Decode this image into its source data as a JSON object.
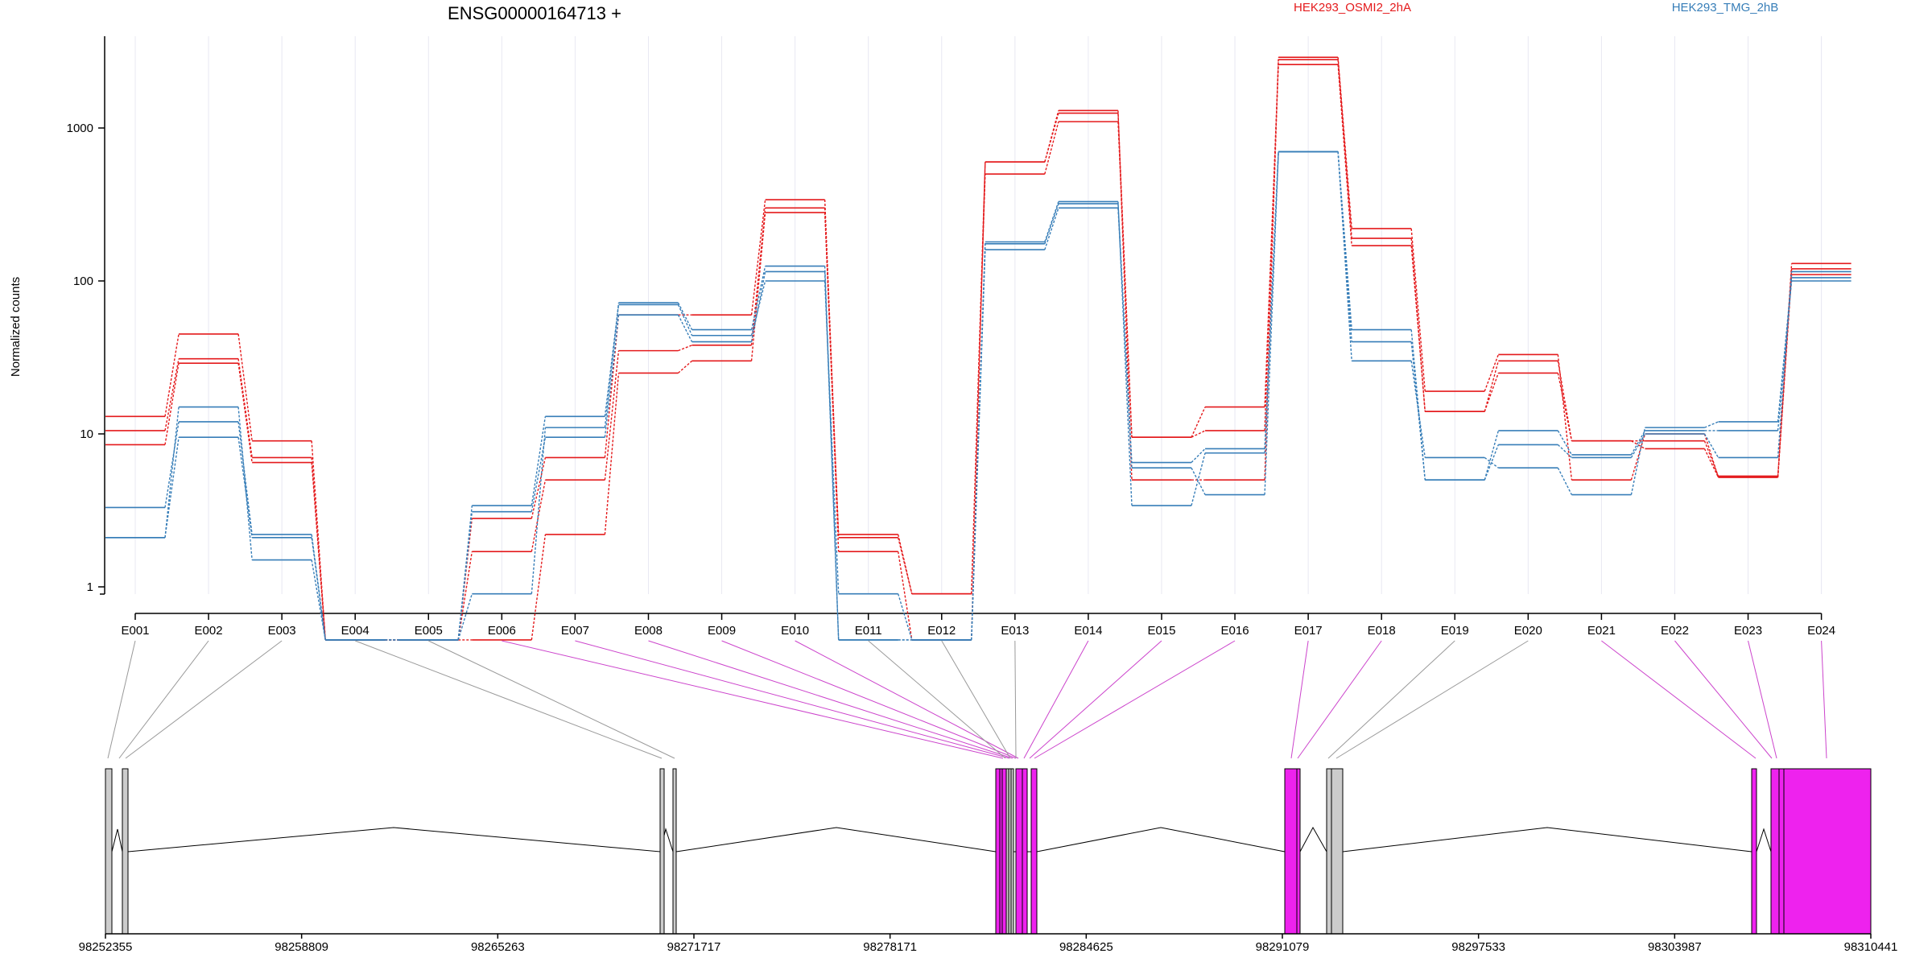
{
  "title": "ENSG00000164713 +",
  "ylabel": "Normalized counts",
  "colors": {
    "condition_a": "#e41a1c",
    "condition_b": "#377eb8",
    "significant": "#ee22ee",
    "not_significant": "#cccccc",
    "grid": "#e8e8f2",
    "axis": "#000000",
    "link_gray": "#999999",
    "link_magenta": "#cc44cc"
  },
  "legend": [
    {
      "name": "HEK293_OSMI2_2hA",
      "color": "#e41a1c"
    },
    {
      "name": "HEK293_TMG_2hB",
      "color": "#377eb8"
    }
  ],
  "chart_data": {
    "type": "line",
    "title": "ENSG00000164713 +",
    "ylabel": "Normalized counts",
    "yscale": "log",
    "ylim": [
      0.35,
      3800
    ],
    "y_ticks": [
      1,
      10,
      100,
      1000
    ],
    "y_tick_labels": [
      "1",
      "10",
      "100",
      "1000"
    ],
    "categories": [
      "E001",
      "E002",
      "E003",
      "E004",
      "E005",
      "E006",
      "E007",
      "E008",
      "E009",
      "E010",
      "E011",
      "E012",
      "E013",
      "E014",
      "E015",
      "E016",
      "E017",
      "E018",
      "E019",
      "E020",
      "E021",
      "E022",
      "E023",
      "E024"
    ],
    "series": [
      {
        "group": "HEK293_OSMI2_2hA",
        "values": [
          13,
          45,
          9,
          0.45,
          0.45,
          0.45,
          2.2,
          25,
          30,
          280,
          2.2,
          0.9,
          500,
          1100,
          9.5,
          15,
          2600,
          170,
          14,
          25,
          9,
          8,
          5.2,
          130
        ]
      },
      {
        "group": "HEK293_OSMI2_2hA",
        "values": [
          10.5,
          31,
          7,
          0.45,
          0.45,
          1.7,
          5,
          35,
          38,
          300,
          1.7,
          0.45,
          600,
          1250,
          9.5,
          10.5,
          2800,
          190,
          14,
          30,
          9,
          9,
          5.3,
          120
        ]
      },
      {
        "group": "HEK293_OSMI2_2hA",
        "values": [
          8.5,
          29,
          6.5,
          0.45,
          0.45,
          2.8,
          7,
          60,
          60,
          340,
          2.1,
          0.9,
          600,
          1300,
          5,
          5,
          2900,
          220,
          19,
          33,
          5,
          10,
          5.2,
          110
        ]
      },
      {
        "group": "HEK293_TMG_2hB",
        "values": [
          2.1,
          15,
          1.5,
          0.45,
          0.45,
          3.4,
          13,
          70,
          44,
          100,
          0.9,
          0.45,
          160,
          300,
          6.5,
          8,
          700,
          48,
          5,
          8.5,
          7,
          10,
          7,
          115
        ]
      },
      {
        "group": "HEK293_TMG_2hB",
        "values": [
          3.3,
          12,
          2.2,
          0.45,
          0.45,
          0.9,
          11,
          72,
          48,
          125,
          0.45,
          0.45,
          180,
          330,
          3.4,
          7.5,
          700,
          40,
          5,
          10.5,
          7.3,
          10.5,
          10.5,
          100
        ]
      },
      {
        "group": "HEK293_TMG_2hB",
        "values": [
          2.1,
          9.5,
          2.1,
          0.45,
          0.45,
          3.1,
          9.5,
          60,
          40,
          115,
          0.45,
          0.45,
          175,
          320,
          6,
          4,
          700,
          30,
          7,
          6,
          4,
          11,
          12,
          105
        ]
      }
    ]
  },
  "gene_model": {
    "coordinate_labels": [
      "98252355",
      "98258809",
      "98265263",
      "98271717",
      "98278171",
      "98284625",
      "98291079",
      "98297533",
      "98303987",
      "98310441"
    ],
    "exons": [
      {
        "id": "E001",
        "significant": false
      },
      {
        "id": "E002",
        "significant": false
      },
      {
        "id": "E003",
        "significant": false
      },
      {
        "id": "E004",
        "significant": false
      },
      {
        "id": "E005",
        "significant": false
      },
      {
        "id": "E006",
        "significant": true
      },
      {
        "id": "E007",
        "significant": true
      },
      {
        "id": "E008",
        "significant": true
      },
      {
        "id": "E009",
        "significant": true
      },
      {
        "id": "E010",
        "significant": true
      },
      {
        "id": "E011",
        "significant": false
      },
      {
        "id": "E012",
        "significant": false
      },
      {
        "id": "E013",
        "significant": false
      },
      {
        "id": "E014",
        "significant": true
      },
      {
        "id": "E015",
        "significant": true
      },
      {
        "id": "E016",
        "significant": true
      },
      {
        "id": "E017",
        "significant": true
      },
      {
        "id": "E018",
        "significant": true
      },
      {
        "id": "E019",
        "significant": false
      },
      {
        "id": "E020",
        "significant": false
      },
      {
        "id": "E021",
        "significant": true
      },
      {
        "id": "E022",
        "significant": true
      },
      {
        "id": "E023",
        "significant": true
      },
      {
        "id": "E024",
        "significant": true
      }
    ]
  }
}
